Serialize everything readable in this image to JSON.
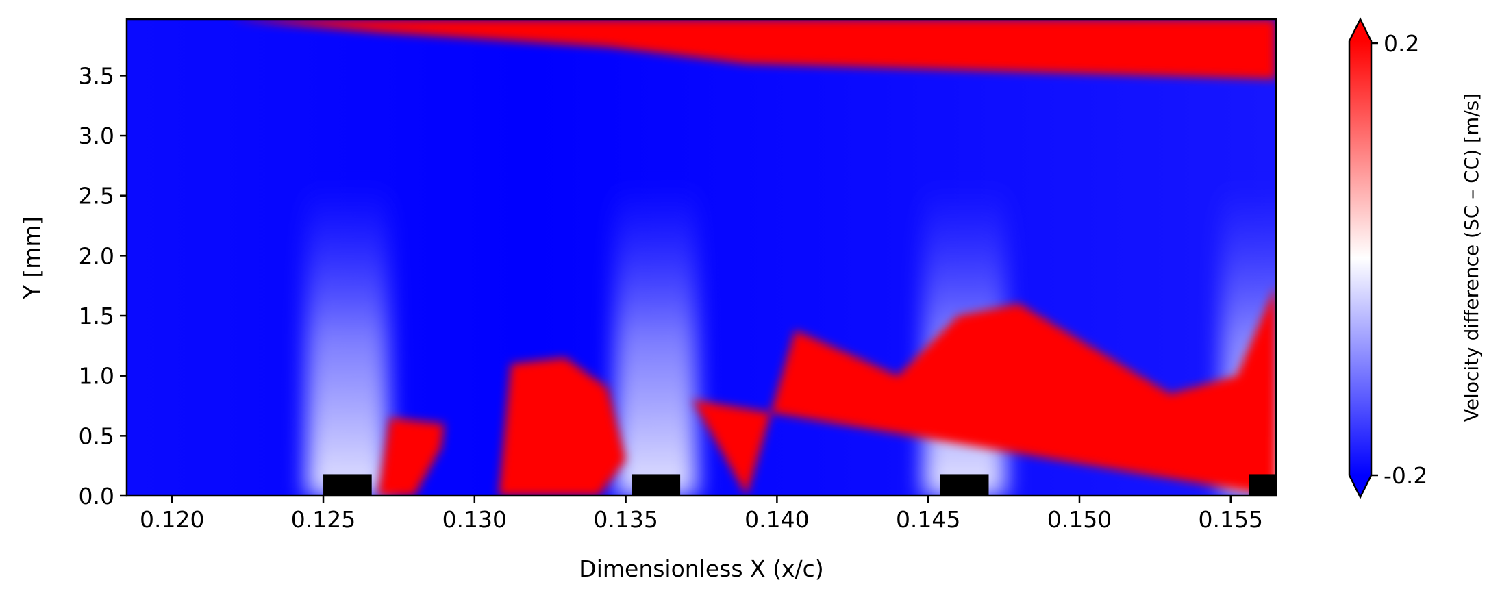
{
  "chart_data": {
    "type": "heatmap",
    "title": "",
    "xlabel": "Dimensionless X (x/c)",
    "ylabel": "Y [mm]",
    "xlim": [
      0.1185,
      0.1565
    ],
    "ylim": [
      0.0,
      3.97
    ],
    "x_ticks": [
      0.12,
      0.125,
      0.13,
      0.135,
      0.14,
      0.145,
      0.15,
      0.155
    ],
    "x_tick_labels": [
      "0.120",
      "0.125",
      "0.130",
      "0.135",
      "0.140",
      "0.145",
      "0.150",
      "0.155"
    ],
    "y_ticks": [
      0.0,
      0.5,
      1.0,
      1.5,
      2.0,
      2.5,
      3.0,
      3.5
    ],
    "y_tick_labels": [
      "0.0",
      "0.5",
      "1.0",
      "1.5",
      "2.0",
      "2.5",
      "3.0",
      "3.5"
    ],
    "colormap": "bwr",
    "colors": {
      "negative": "#0000ff",
      "zero": "#ffffff",
      "positive": "#ff0000",
      "obstacle": "#000000"
    },
    "colorbar": {
      "label": "Velocity difference (SC – CC) [m/s]",
      "vmin": -0.2,
      "vmax": 0.2,
      "extend": "both",
      "tick_labels": [
        "0.2",
        "-0.2"
      ]
    },
    "positive_regions": [
      {
        "x": [
          0.1219,
          0.1269,
          0.1344,
          0.139,
          0.1565,
          0.1565
        ],
        "y": [
          3.97,
          3.86,
          3.74,
          3.6,
          3.47,
          3.97
        ]
      },
      {
        "x": [
          0.1268,
          0.1272,
          0.129,
          0.1289,
          0.128,
          0.1268
        ],
        "y": [
          0.0,
          0.65,
          0.6,
          0.4,
          0.0,
          0.0
        ]
      },
      {
        "x": [
          0.1308,
          0.1312,
          0.133,
          0.1344,
          0.135,
          0.1341,
          0.1316
        ],
        "y": [
          0.0,
          1.1,
          1.15,
          0.9,
          0.3,
          0.0,
          0.0
        ]
      },
      {
        "x": [
          0.1372,
          0.139,
          0.1406,
          0.144,
          0.146,
          0.148,
          0.153,
          0.1552,
          0.1565,
          0.1565
        ],
        "y": [
          0.8,
          0.0,
          1.38,
          1.0,
          1.5,
          1.6,
          0.85,
          1.0,
          1.75,
          0.0
        ]
      }
    ],
    "blocks": [
      {
        "x": [
          0.125,
          0.1266
        ],
        "y": [
          0.0,
          0.18
        ]
      },
      {
        "x": [
          0.1352,
          0.1368
        ],
        "y": [
          0.0,
          0.18
        ]
      },
      {
        "x": [
          0.1454,
          0.147
        ],
        "y": [
          0.0,
          0.18
        ]
      },
      {
        "x": [
          0.1556,
          0.1565
        ],
        "y": [
          0.0,
          0.18
        ]
      }
    ]
  }
}
